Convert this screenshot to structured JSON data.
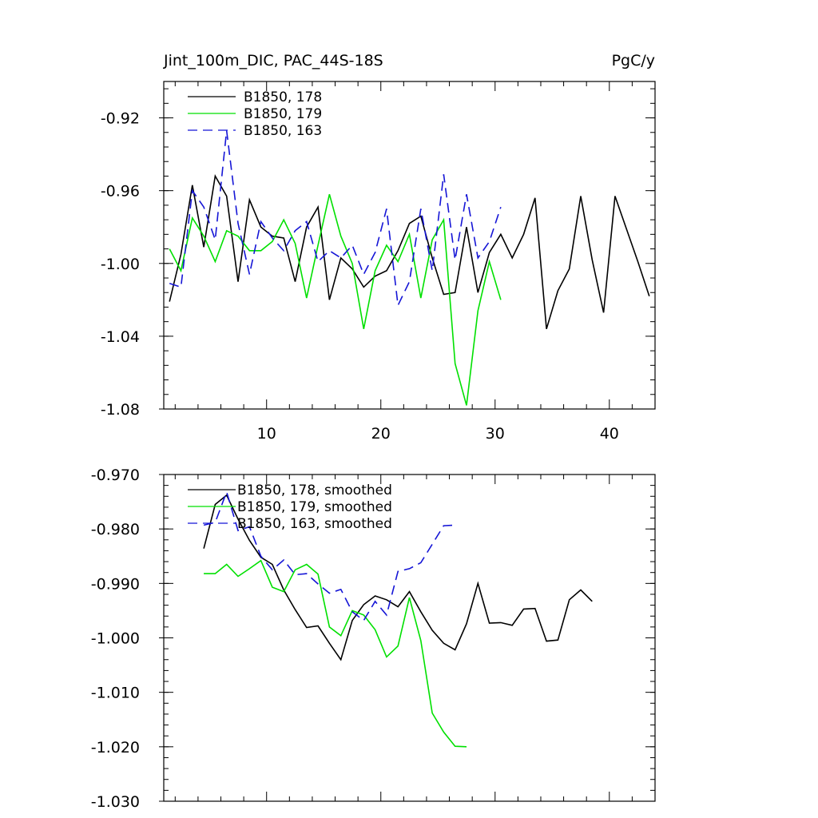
{
  "colors": {
    "black": "#000000",
    "green": "#00e000",
    "blue": "#1515d6"
  },
  "chart_data": [
    {
      "type": "line",
      "title_left": "Jint_100m_DIC, PAC_44S-18S",
      "title_right": "PgC/y",
      "xlim": [
        1,
        44
      ],
      "ylim": [
        -1.08,
        -0.9
      ],
      "xticks": [
        10,
        20,
        30,
        40
      ],
      "xtick_labels": [
        "10",
        "20",
        "30",
        "40"
      ],
      "yticks": [
        -1.08,
        -1.04,
        -1.0,
        -0.96,
        -0.92
      ],
      "ytick_labels": [
        "-1.08",
        "-1.04",
        "-1.00",
        "-0.96",
        "-0.92"
      ],
      "series": [
        {
          "name": "B1850, 178",
          "color": "black",
          "dash": "none",
          "x_start": 1.5,
          "values": [
            -1.021,
            -0.995,
            -0.957,
            -0.991,
            -0.952,
            -0.963,
            -1.01,
            -0.965,
            -0.98,
            -0.985,
            -0.986,
            -1.01,
            -0.98,
            -0.969,
            -1.02,
            -0.997,
            -1.003,
            -1.013,
            -1.007,
            -1.004,
            -0.993,
            -0.978,
            -0.974,
            -0.997,
            -1.017,
            -1.016,
            -0.98,
            -1.016,
            -0.994,
            -0.984,
            -0.997,
            -0.984,
            -0.964,
            -1.036,
            -1.015,
            -1.003,
            -0.963,
            -0.998,
            -1.027,
            -0.963,
            -0.981,
            -0.999,
            -1.018
          ]
        },
        {
          "name": "B1850, 179",
          "color": "green",
          "dash": "none",
          "x_start": 1.5,
          "values": [
            -0.992,
            -1.004,
            -0.975,
            -0.985,
            -0.999,
            -0.982,
            -0.985,
            -0.993,
            -0.993,
            -0.988,
            -0.976,
            -0.989,
            -1.019,
            -0.99,
            -0.962,
            -0.985,
            -1.0,
            -1.036,
            -1.004,
            -0.99,
            -0.999,
            -0.984,
            -1.019,
            -0.987,
            -0.976,
            -1.055,
            -1.078,
            -1.026,
            -0.999,
            -1.02
          ]
        },
        {
          "name": "B1850, 163",
          "color": "blue",
          "dash": "12,7",
          "x_start": 1.5,
          "values": [
            -1.011,
            -1.013,
            -0.96,
            -0.969,
            -0.987,
            -0.927,
            -0.978,
            -1.006,
            -0.977,
            -0.986,
            -0.993,
            -0.982,
            -0.977,
            -0.999,
            -0.993,
            -0.997,
            -0.99,
            -1.006,
            -0.994,
            -0.97,
            -1.023,
            -1.01,
            -0.97,
            -1.004,
            -0.951,
            -0.998,
            -0.962,
            -0.997,
            -0.988,
            -0.969
          ]
        }
      ]
    },
    {
      "type": "line",
      "xlim": [
        1,
        44
      ],
      "ylim": [
        -1.03,
        -0.97
      ],
      "xticks": [
        10,
        20,
        30,
        40
      ],
      "yticks": [
        -1.03,
        -1.02,
        -1.01,
        -1.0,
        -0.99,
        -0.98,
        -0.97
      ],
      "ytick_labels": [
        "-1.030",
        "-1.020",
        "-1.010",
        "-1.000",
        "-0.990",
        "-0.980",
        "-0.970"
      ],
      "series": [
        {
          "name": "B1850, 178, smoothed",
          "color": "black",
          "dash": "none",
          "x_start": 4.5,
          "values": [
            -0.9836,
            -0.9755,
            -0.9738,
            -0.9782,
            -0.9821,
            -0.9852,
            -0.9865,
            -0.9912,
            -0.9948,
            -0.9981,
            -0.9978,
            -1.001,
            -1.004,
            -0.9968,
            -0.9939,
            -0.9923,
            -0.993,
            -0.9943,
            -0.9915,
            -0.9952,
            -0.9986,
            -1.001,
            -1.0022,
            -0.9974,
            -0.99,
            -0.9973,
            -0.9972,
            -0.9977,
            -0.9947,
            -0.9946,
            -1.0006,
            -1.0004,
            -0.993,
            -0.9912,
            -0.9933
          ]
        },
        {
          "name": "B1850, 179, smoothed",
          "color": "green",
          "dash": "none",
          "x_start": 4.5,
          "values": [
            -0.9882,
            -0.9882,
            -0.9865,
            -0.9887,
            -0.9873,
            -0.9858,
            -0.9907,
            -0.9915,
            -0.9875,
            -0.9865,
            -0.9883,
            -0.998,
            -0.9996,
            -0.995,
            -0.9958,
            -0.9985,
            -1.0035,
            -1.0015,
            -0.9926,
            -1.0005,
            -1.0138,
            -1.0173,
            -1.0199,
            -1.02
          ]
        },
        {
          "name": "B1850, 163, smoothed",
          "color": "blue",
          "dash": "12,7",
          "x_start": 4.5,
          "values": [
            -0.9793,
            -0.9788,
            -0.9732,
            -0.9803,
            -0.9796,
            -0.985,
            -0.9875,
            -0.9857,
            -0.9884,
            -0.9882,
            -0.9901,
            -0.9918,
            -0.9911,
            -0.9952,
            -0.9968,
            -0.9933,
            -0.9958,
            -0.9878,
            -0.9873,
            -0.9862,
            -0.9828,
            -0.9794,
            -0.9793
          ]
        }
      ]
    }
  ]
}
